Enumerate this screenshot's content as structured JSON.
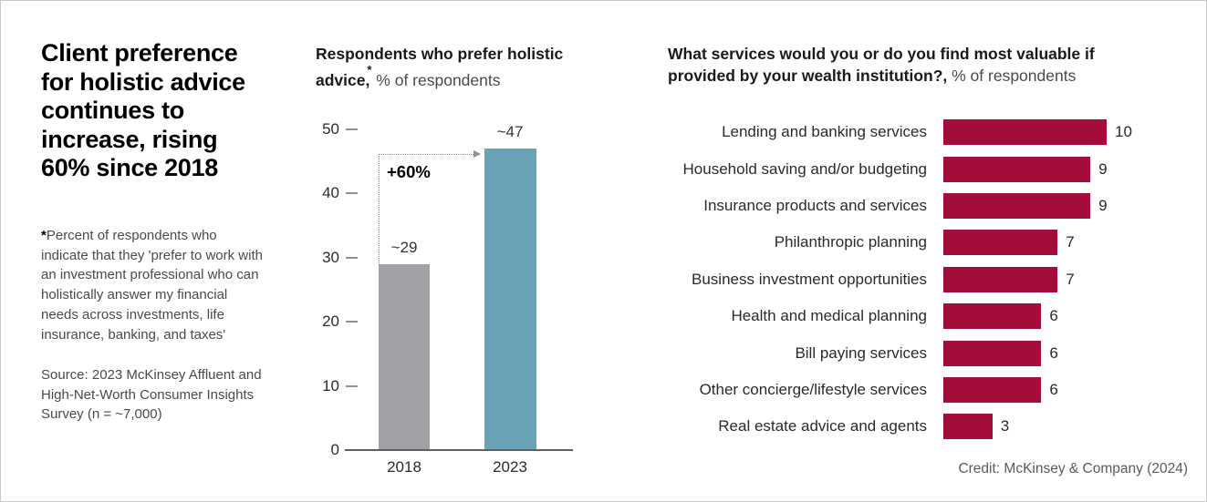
{
  "left_panel": {
    "title_lines": [
      "Client preference",
      "for holistic advice",
      "continues to",
      "increase, rising",
      "60% since 2018"
    ],
    "footnote_marker": "*",
    "footnote_text": "Percent of respondents who indicate that they 'prefer to work with an investment professional who can holistically answer my financial needs across investments, life insurance, banking, and taxes'",
    "source_text": "Source: 2023 McKinsey Affluent and High-Net-Worth Consumer Insights Survey (n = ~7,000)"
  },
  "trend_chart": {
    "title_bold": "Respondents who prefer holistic advice,",
    "title_marker": "*",
    "title_regular": " % of respondents"
  },
  "services_chart": {
    "title_bold": "What services would you or do you find most valuable if provided by your wealth institution?,",
    "title_regular": " % of respondents"
  },
  "credit": "Credit: McKinsey & Company (2024)",
  "colors": {
    "trend_bar_2018": "#a1a2a6",
    "trend_bar_2023": "#6aa2b8",
    "services_bar": "#a40d3a",
    "accent_text": "#000000"
  },
  "chart_data": [
    {
      "id": "holistic-advice-trend",
      "type": "bar",
      "title": "Respondents who prefer holistic advice,* % of respondents",
      "categories": [
        "2018",
        "2023"
      ],
      "values": [
        29,
        47
      ],
      "data_labels": [
        "~29",
        "~47"
      ],
      "annotation": "+60%",
      "xlabel": "",
      "ylabel": "",
      "ylim": [
        0,
        50
      ],
      "yticks": [
        0,
        10,
        20,
        30,
        40,
        50
      ],
      "bar_colors": [
        "#a1a2a6",
        "#6aa2b8"
      ],
      "grid": false,
      "legend": false
    },
    {
      "id": "valued-services",
      "type": "bar",
      "orientation": "horizontal",
      "title": "What services would you or do you find most valuable if provided by your wealth institution?, % of respondents",
      "categories": [
        "Lending and banking services",
        "Household saving and/or budgeting",
        "Insurance products and services",
        "Philanthropic planning",
        "Business investment opportunities",
        "Health and medical planning",
        "Bill paying services",
        "Other concierge/lifestyle services",
        "Real estate advice and agents"
      ],
      "values": [
        10,
        9,
        9,
        7,
        7,
        6,
        6,
        6,
        3
      ],
      "xlim": [
        0,
        10
      ],
      "bar_color": "#a40d3a",
      "grid": false,
      "legend": false
    }
  ]
}
